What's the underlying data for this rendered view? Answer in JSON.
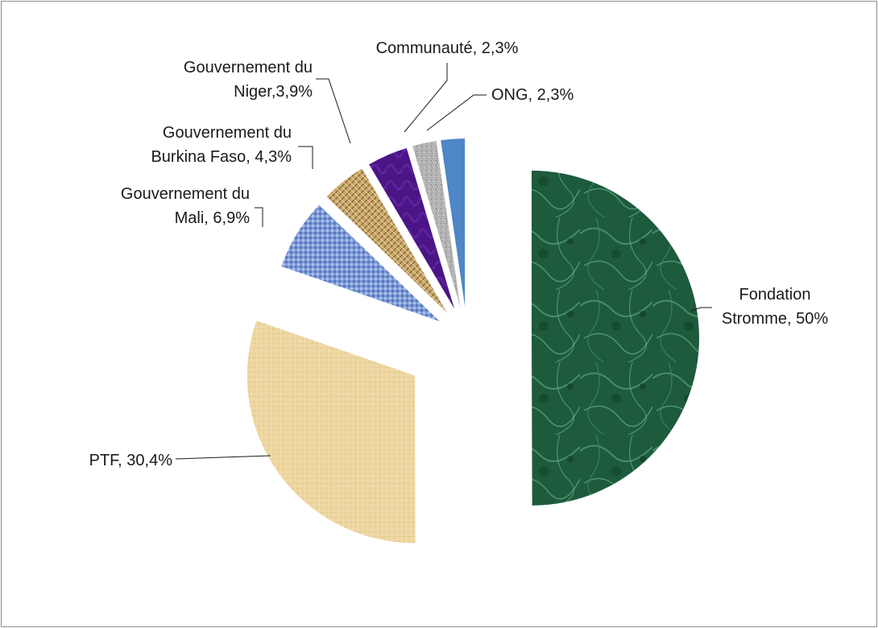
{
  "chart_data": {
    "type": "pie",
    "exploded": true,
    "start_angle_deg": 0,
    "direction": "clockwise",
    "slices": [
      {
        "label_lines": [
          "Fondation",
          "Stromme, 50%"
        ],
        "value": 50,
        "color": "#1e5a3c",
        "texture": "marble"
      },
      {
        "label_lines": [
          "PTF, 30,4%"
        ],
        "value": 30.4,
        "color": "#edd6a0",
        "texture": "canvas"
      },
      {
        "label_lines": [
          "Gouvernement du",
          "Mali, 6,9%"
        ],
        "value": 6.9,
        "color": "#7d9ad6",
        "texture": "weave"
      },
      {
        "label_lines": [
          "Gouvernement du",
          "Burkina Faso, 4,3%"
        ],
        "value": 4.3,
        "color": "#c9a66a",
        "texture": "burlap"
      },
      {
        "label_lines": [
          "Gouvernement du",
          "Niger,3,9%"
        ],
        "value": 3.9,
        "color": "#4b1585",
        "texture": "velvet"
      },
      {
        "label_lines": [
          "Communauté, 2,3%"
        ],
        "value": 2.3,
        "color": "#b4b4b4",
        "texture": "granite"
      },
      {
        "label_lines": [
          "ONG, 2,3%"
        ],
        "value": 2.3,
        "color": "#4f86c6",
        "texture": "solid"
      }
    ]
  }
}
